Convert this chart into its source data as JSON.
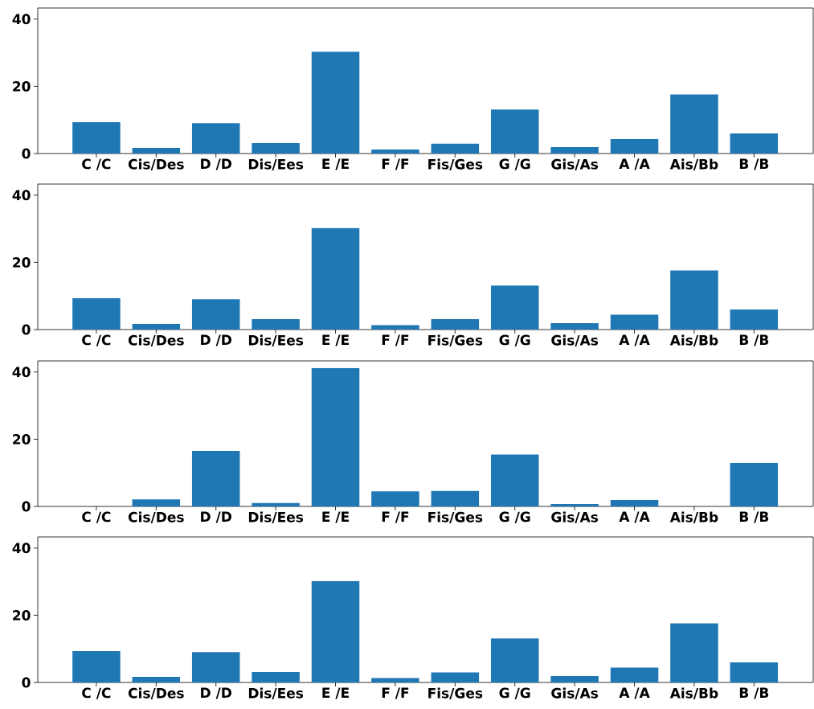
{
  "chart_data": [
    {
      "type": "bar",
      "categories": [
        "C  /C",
        "Cis/Des",
        "D  /D",
        "Dis/Ees",
        "E  /E",
        "F  /F",
        "Fis/Ges",
        "G  /G",
        "Gis/As",
        "A  /A",
        "Ais/Bb",
        "B  /B"
      ],
      "values": [
        9.3,
        1.7,
        9.0,
        3.1,
        30.3,
        1.2,
        2.9,
        13.1,
        1.9,
        4.3,
        17.6,
        6.0
      ],
      "color": "#1f77b4",
      "ylim": [
        0,
        43.3
      ],
      "yticks": [
        0,
        20,
        40
      ]
    },
    {
      "type": "bar",
      "categories": [
        "C  /C",
        "Cis/Des",
        "D  /D",
        "Dis/Ees",
        "E  /E",
        "F  /F",
        "Fis/Ges",
        "G  /G",
        "Gis/As",
        "A  /A",
        "Ais/Bb",
        "B  /B"
      ],
      "values": [
        9.3,
        1.7,
        9.0,
        3.1,
        30.2,
        1.3,
        3.1,
        13.1,
        1.9,
        4.4,
        17.6,
        6.0
      ],
      "color": "#1f77b4",
      "ylim": [
        0,
        43.3
      ],
      "yticks": [
        0,
        20,
        40
      ]
    },
    {
      "type": "bar",
      "categories": [
        "C  /C",
        "Cis/Des",
        "D  /D",
        "Dis/Ees",
        "E  /E",
        "F  /F",
        "Fis/Ges",
        "G  /G",
        "Gis/As",
        "A  /A",
        "Ais/Bb",
        "B  /B"
      ],
      "values": [
        0,
        2.1,
        16.5,
        1.0,
        41.2,
        4.5,
        4.6,
        15.4,
        0.7,
        1.9,
        0,
        12.9
      ],
      "color": "#1f77b4",
      "ylim": [
        0,
        43.3
      ],
      "yticks": [
        0,
        20,
        40
      ]
    },
    {
      "type": "bar",
      "categories": [
        "C  /C",
        "Cis/Des",
        "D  /D",
        "Dis/Ees",
        "E  /E",
        "F  /F",
        "Fis/Ges",
        "G  /G",
        "Gis/As",
        "A  /A",
        "Ais/Bb",
        "B  /B"
      ],
      "values": [
        9.3,
        1.7,
        9.0,
        3.1,
        30.2,
        1.3,
        3.0,
        13.1,
        1.9,
        4.4,
        17.6,
        6.0
      ],
      "color": "#1f77b4",
      "ylim": [
        0,
        43.3
      ],
      "yticks": [
        0,
        20,
        40
      ]
    }
  ]
}
